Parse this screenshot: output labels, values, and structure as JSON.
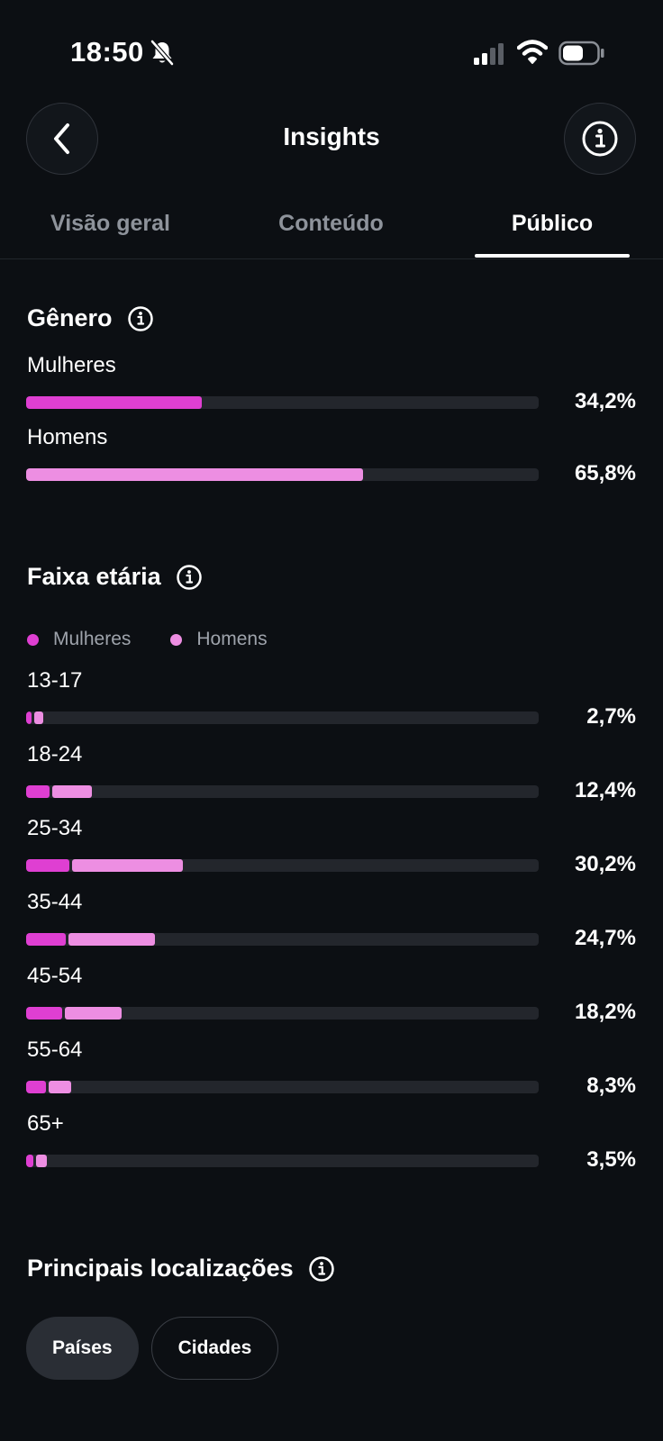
{
  "status_bar": {
    "time": "18:50"
  },
  "header": {
    "title": "Insights"
  },
  "tabs": [
    {
      "label": "Visão geral"
    },
    {
      "label": "Conteúdo"
    },
    {
      "label": "Público",
      "active": true
    }
  ],
  "colors": {
    "women": "#df3fd2",
    "men": "#ed8ee2",
    "track": "#23262c",
    "background": "#0c0f13"
  },
  "gender": {
    "title": "Gênero",
    "rows": [
      {
        "label": "Mulheres",
        "value": 34.2,
        "value_text": "34,2%"
      },
      {
        "label": "Homens",
        "value": 65.8,
        "value_text": "65,8%"
      }
    ]
  },
  "age": {
    "title": "Faixa etária",
    "legend": {
      "women": "Mulheres",
      "men": "Homens"
    },
    "max_scale": 100,
    "rows": [
      {
        "label": "13-17",
        "value_text": "2,7%",
        "women": 1.0,
        "men": 1.7
      },
      {
        "label": "18-24",
        "value_text": "12,4%",
        "women": 4.6,
        "men": 7.8
      },
      {
        "label": "25-34",
        "value_text": "30,2%",
        "women": 8.5,
        "men": 21.7
      },
      {
        "label": "35-44",
        "value_text": "24,7%",
        "women": 7.8,
        "men": 16.9
      },
      {
        "label": "45-54",
        "value_text": "18,2%",
        "women": 7.1,
        "men": 11.1
      },
      {
        "label": "55-64",
        "value_text": "8,3%",
        "women": 3.9,
        "men": 4.4
      },
      {
        "label": "65+",
        "value_text": "3,5%",
        "women": 1.4,
        "men": 2.1
      }
    ]
  },
  "locations": {
    "title": "Principais localizações",
    "chips": [
      {
        "label": "Países",
        "active": true
      },
      {
        "label": "Cidades",
        "active": false
      }
    ]
  }
}
